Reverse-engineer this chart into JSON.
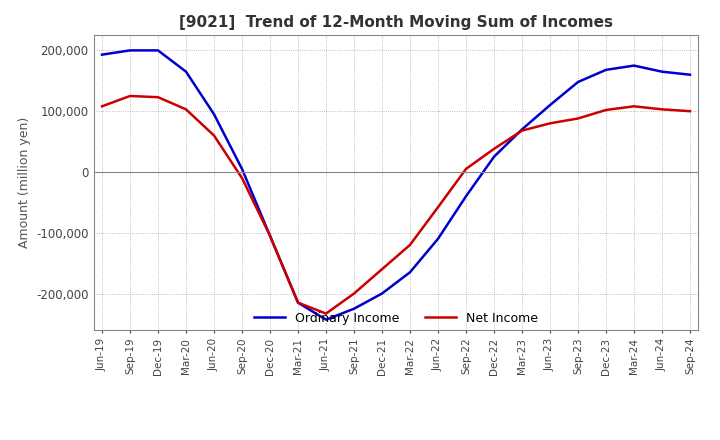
{
  "title": "[9021]  Trend of 12-Month Moving Sum of Incomes",
  "ylabel": "Amount (million yen)",
  "ylim": [
    -260000,
    225000
  ],
  "yticks": [
    -200000,
    -100000,
    0,
    100000,
    200000
  ],
  "ordinary_income_color": "#0000CC",
  "net_income_color": "#CC0000",
  "background_color": "#FFFFFF",
  "grid_color": "#AAAAAA",
  "zero_line_color": "#888888",
  "dates": [
    "Jun-19",
    "Sep-19",
    "Dec-19",
    "Mar-20",
    "Jun-20",
    "Sep-20",
    "Dec-20",
    "Mar-21",
    "Jun-21",
    "Sep-21",
    "Dec-21",
    "Mar-22",
    "Jun-22",
    "Sep-22",
    "Dec-22",
    "Mar-23",
    "Jun-23",
    "Sep-23",
    "Dec-23",
    "Mar-24",
    "Jun-24",
    "Sep-24"
  ],
  "ordinary_income": [
    193000,
    200000,
    200000,
    165000,
    95000,
    5000,
    -105000,
    -215000,
    -243000,
    -225000,
    -200000,
    -165000,
    -110000,
    -40000,
    25000,
    70000,
    110000,
    148000,
    168000,
    175000,
    165000,
    160000
  ],
  "net_income": [
    108000,
    125000,
    123000,
    103000,
    60000,
    -10000,
    -105000,
    -215000,
    -233000,
    -200000,
    -160000,
    -120000,
    -58000,
    5000,
    38000,
    68000,
    80000,
    88000,
    102000,
    108000,
    103000,
    100000
  ]
}
